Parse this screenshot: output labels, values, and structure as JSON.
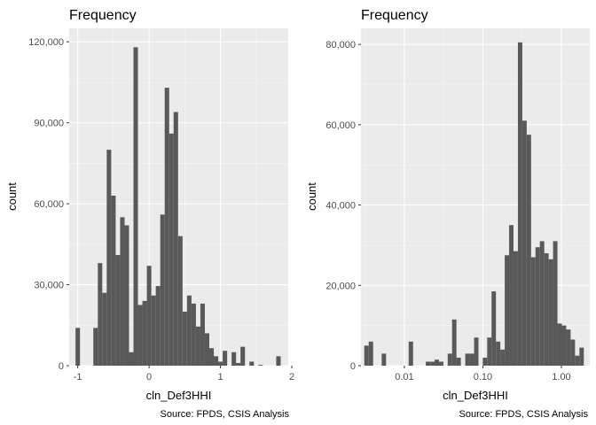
{
  "colors": {
    "panel_background": "#ebebeb",
    "grid_major": "#ffffff",
    "grid_minor": "#f5f5f5",
    "bar_fill": "#595959",
    "tick_color": "#333333"
  },
  "chart_data": [
    {
      "type": "bar",
      "title": "Frequency",
      "xlabel": "cln_Def3HHI",
      "ylabel": "count",
      "caption": "Source: FPDS, CSIS Analysis",
      "x_scale": "linear",
      "xlim": [
        -1.12,
        1.95
      ],
      "ylim": [
        0,
        125000
      ],
      "grid": true,
      "bin_width": 0.0625,
      "x_ticks": [
        -1,
        0,
        1,
        2
      ],
      "x_tick_labels": [
        "-1",
        "0",
        "1",
        "2"
      ],
      "y_ticks": [
        0,
        30000,
        60000,
        90000,
        120000
      ],
      "y_tick_labels": [
        "0",
        "30,000",
        "60,000",
        "90,000",
        "120,000"
      ],
      "bins": [
        {
          "x": -1.0,
          "count": 14000
        },
        {
          "x": -0.75,
          "count": 14000
        },
        {
          "x": -0.6875,
          "count": 38000
        },
        {
          "x": -0.625,
          "count": 27000
        },
        {
          "x": -0.5625,
          "count": 80000
        },
        {
          "x": -0.5,
          "count": 63000
        },
        {
          "x": -0.4375,
          "count": 41000
        },
        {
          "x": -0.375,
          "count": 55000
        },
        {
          "x": -0.3125,
          "count": 52000
        },
        {
          "x": -0.25,
          "count": 5000
        },
        {
          "x": -0.1875,
          "count": 118000
        },
        {
          "x": -0.125,
          "count": 22500
        },
        {
          "x": -0.0625,
          "count": 24000
        },
        {
          "x": 0.0,
          "count": 37000
        },
        {
          "x": 0.0625,
          "count": 26000
        },
        {
          "x": 0.125,
          "count": 29500
        },
        {
          "x": 0.1875,
          "count": 56000
        },
        {
          "x": 0.25,
          "count": 103000
        },
        {
          "x": 0.3125,
          "count": 86000
        },
        {
          "x": 0.375,
          "count": 94000
        },
        {
          "x": 0.4375,
          "count": 48000
        },
        {
          "x": 0.5,
          "count": 20000
        },
        {
          "x": 0.5625,
          "count": 26000
        },
        {
          "x": 0.625,
          "count": 23000
        },
        {
          "x": 0.6875,
          "count": 14500
        },
        {
          "x": 0.75,
          "count": 23000
        },
        {
          "x": 0.8125,
          "count": 12000
        },
        {
          "x": 0.875,
          "count": 6500
        },
        {
          "x": 0.9375,
          "count": 3500
        },
        {
          "x": 1.0,
          "count": 1500
        },
        {
          "x": 1.0625,
          "count": 5500
        },
        {
          "x": 1.1875,
          "count": 5000
        },
        {
          "x": 1.25,
          "count": 1000
        },
        {
          "x": 1.3125,
          "count": 7000
        },
        {
          "x": 1.4375,
          "count": 1500
        },
        {
          "x": 1.5625,
          "count": 300
        },
        {
          "x": 1.8125,
          "count": 3500
        }
      ]
    },
    {
      "type": "bar",
      "title": "Frequency",
      "xlabel": "cln_Def3HHI",
      "ylabel": "count",
      "caption": "Source: FPDS, CSIS Analysis",
      "x_scale": "log10",
      "xlim": [
        0.0028,
        2.3
      ],
      "ylim": [
        0,
        84000
      ],
      "grid": true,
      "x_ticks": [
        0.01,
        0.1,
        1
      ],
      "x_tick_labels": [
        "0.01",
        "0.10",
        "1.00"
      ],
      "y_ticks": [
        0,
        20000,
        40000,
        60000,
        80000
      ],
      "y_tick_labels": [
        "0",
        "20,000",
        "40,000",
        "60,000",
        "80,000"
      ],
      "bins": [
        {
          "x": 0.00329,
          "count": 5000
        },
        {
          "x": 0.00375,
          "count": 6000
        },
        {
          "x": 0.00548,
          "count": 3000
        },
        {
          "x": 0.0121,
          "count": 6000
        },
        {
          "x": 0.02,
          "count": 1000
        },
        {
          "x": 0.0228,
          "count": 1000
        },
        {
          "x": 0.0259,
          "count": 1500
        },
        {
          "x": 0.0295,
          "count": 1000
        },
        {
          "x": 0.038,
          "count": 3000
        },
        {
          "x": 0.0432,
          "count": 11500
        },
        {
          "x": 0.0491,
          "count": 2000
        },
        {
          "x": 0.0636,
          "count": 3000
        },
        {
          "x": 0.0724,
          "count": 3000
        },
        {
          "x": 0.0824,
          "count": 7000
        },
        {
          "x": 0.1063,
          "count": 2000
        },
        {
          "x": 0.1209,
          "count": 7000
        },
        {
          "x": 0.1375,
          "count": 18500
        },
        {
          "x": 0.1564,
          "count": 6000
        },
        {
          "x": 0.1779,
          "count": 4000
        },
        {
          "x": 0.2024,
          "count": 27500
        },
        {
          "x": 0.2302,
          "count": 35000
        },
        {
          "x": 0.2619,
          "count": 28500
        },
        {
          "x": 0.2979,
          "count": 80500
        },
        {
          "x": 0.3389,
          "count": 61000
        },
        {
          "x": 0.3855,
          "count": 57500
        },
        {
          "x": 0.4385,
          "count": 27000
        },
        {
          "x": 0.4988,
          "count": 29500
        },
        {
          "x": 0.5674,
          "count": 31000
        },
        {
          "x": 0.6455,
          "count": 28000
        },
        {
          "x": 0.7343,
          "count": 26500
        },
        {
          "x": 0.8352,
          "count": 31000
        },
        {
          "x": 0.9501,
          "count": 10500
        },
        {
          "x": 1.0808,
          "count": 10000
        },
        {
          "x": 1.2294,
          "count": 9000
        },
        {
          "x": 1.3985,
          "count": 6500
        },
        {
          "x": 1.5908,
          "count": 2500
        },
        {
          "x": 1.8096,
          "count": 4500
        }
      ]
    }
  ]
}
